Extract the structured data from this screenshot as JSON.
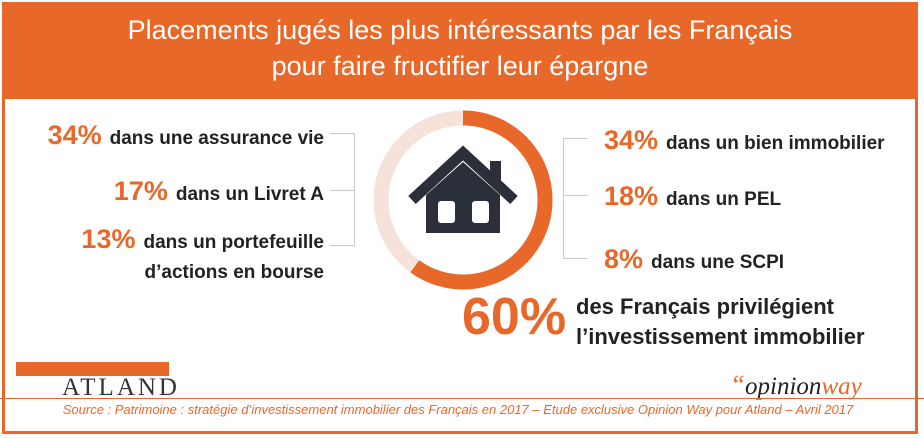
{
  "header": {
    "title_line1": "Placements jugés les plus intéressants par les Français",
    "title_line2": "pour faire fructifier leur épargne"
  },
  "left_items": [
    {
      "pct": "34%",
      "label": "dans une assurance vie"
    },
    {
      "pct": "17%",
      "label": "dans un Livret A"
    },
    {
      "pct": "13%",
      "label": "dans un portefeuille",
      "label2": "d’actions en bourse"
    }
  ],
  "right_items": [
    {
      "pct": "34%",
      "label": "dans un bien immobilier"
    },
    {
      "pct": "18%",
      "label": "dans un PEL"
    },
    {
      "pct": "8%",
      "label": "dans une SCPI"
    }
  ],
  "highlight": {
    "pct": "60%",
    "line1": "des Français privilégient",
    "line2": "l’investissement immobilier"
  },
  "donut": {
    "fraction": 0.6,
    "icon": "house-icon"
  },
  "logos": {
    "atland": "ATLAND",
    "opinionway_quote": "“",
    "opinionway_a": "opinion",
    "opinionway_b": "way"
  },
  "source": "Source : Patrimoine : stratégie d’investissement immobilier des Français en 2017 – Etude exclusive Opinion Way pour Atland – Avril 2017",
  "colors": {
    "accent": "#e8682a",
    "ring_light": "#f5e3da",
    "icon": "#2a2f3a",
    "connector": "#c9c9c9"
  }
}
